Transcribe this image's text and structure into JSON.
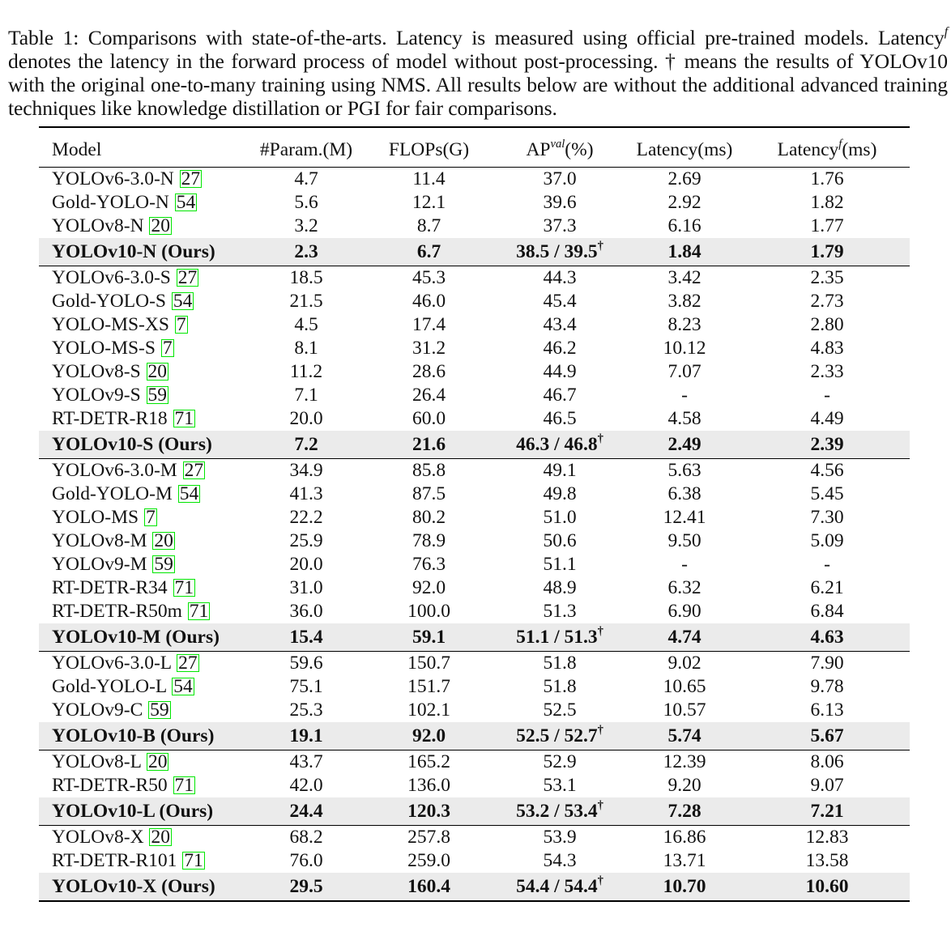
{
  "caption": {
    "lead": "Table 1: Comparisons with state-of-the-arts. Latency is measured using official pre-trained models. Latency",
    "lead_sup": "f",
    "rest": " denotes the latency in the forward process of model without post-processing. † means the results of YOLOv10 with the original one-to-many training using NMS. All results below are without the additional advanced training techniques like knowledge distillation or PGI for fair comparisons."
  },
  "headers": [
    {
      "text": "Model",
      "sup": ""
    },
    {
      "text": "#Param.(M)",
      "sup": ""
    },
    {
      "text": "FLOPs(G)",
      "sup": ""
    },
    {
      "text": "AP",
      "sup": "val",
      "after": "(%)"
    },
    {
      "text": "Latency(ms)",
      "sup": ""
    },
    {
      "text": "Latency",
      "sup": "f",
      "after": "(ms)"
    }
  ],
  "dagger": "†",
  "groups": [
    {
      "rows": [
        {
          "model": "YOLOv6-3.0-N",
          "ref": "27",
          "params": "4.7",
          "flops": "11.4",
          "ap": "37.0",
          "latency": "2.69",
          "latency_f": "1.76"
        },
        {
          "model": "Gold-YOLO-N",
          "ref": "54",
          "params": "5.6",
          "flops": "12.1",
          "ap": "39.6",
          "latency": "2.92",
          "latency_f": "1.82"
        },
        {
          "model": "YOLOv8-N",
          "ref": "20",
          "params": "3.2",
          "flops": "8.7",
          "ap": "37.3",
          "latency": "6.16",
          "latency_f": "1.77"
        }
      ],
      "ours": {
        "model": "YOLOv10-N (Ours)",
        "params": "2.3",
        "flops": "6.7",
        "ap": "38.5 / 39.5",
        "latency": "1.84",
        "latency_f": "1.79"
      }
    },
    {
      "rows": [
        {
          "model": "YOLOv6-3.0-S",
          "ref": "27",
          "params": "18.5",
          "flops": "45.3",
          "ap": "44.3",
          "latency": "3.42",
          "latency_f": "2.35"
        },
        {
          "model": "Gold-YOLO-S",
          "ref": "54",
          "params": "21.5",
          "flops": "46.0",
          "ap": "45.4",
          "latency": "3.82",
          "latency_f": "2.73"
        },
        {
          "model": "YOLO-MS-XS",
          "ref": "7",
          "params": "4.5",
          "flops": "17.4",
          "ap": "43.4",
          "latency": "8.23",
          "latency_f": "2.80"
        },
        {
          "model": "YOLO-MS-S",
          "ref": "7",
          "params": "8.1",
          "flops": "31.2",
          "ap": "46.2",
          "latency": "10.12",
          "latency_f": "4.83"
        },
        {
          "model": "YOLOv8-S",
          "ref": "20",
          "params": "11.2",
          "flops": "28.6",
          "ap": "44.9",
          "latency": "7.07",
          "latency_f": "2.33"
        },
        {
          "model": "YOLOv9-S",
          "ref": "59",
          "params": "7.1",
          "flops": "26.4",
          "ap": "46.7",
          "latency": "-",
          "latency_f": "-"
        },
        {
          "model": "RT-DETR-R18",
          "ref": "71",
          "params": "20.0",
          "flops": "60.0",
          "ap": "46.5",
          "latency": "4.58",
          "latency_f": "4.49"
        }
      ],
      "ours": {
        "model": "YOLOv10-S (Ours)",
        "params": "7.2",
        "flops": "21.6",
        "ap": "46.3 / 46.8",
        "latency": "2.49",
        "latency_f": "2.39"
      }
    },
    {
      "rows": [
        {
          "model": "YOLOv6-3.0-M",
          "ref": "27",
          "params": "34.9",
          "flops": "85.8",
          "ap": "49.1",
          "latency": "5.63",
          "latency_f": "4.56"
        },
        {
          "model": "Gold-YOLO-M",
          "ref": "54",
          "params": "41.3",
          "flops": "87.5",
          "ap": "49.8",
          "latency": "6.38",
          "latency_f": "5.45"
        },
        {
          "model": "YOLO-MS",
          "ref": "7",
          "params": "22.2",
          "flops": "80.2",
          "ap": "51.0",
          "latency": "12.41",
          "latency_f": "7.30"
        },
        {
          "model": "YOLOv8-M",
          "ref": "20",
          "params": "25.9",
          "flops": "78.9",
          "ap": "50.6",
          "latency": "9.50",
          "latency_f": "5.09"
        },
        {
          "model": "YOLOv9-M",
          "ref": "59",
          "params": "20.0",
          "flops": "76.3",
          "ap": "51.1",
          "latency": "-",
          "latency_f": "-"
        },
        {
          "model": "RT-DETR-R34",
          "ref": "71",
          "params": "31.0",
          "flops": "92.0",
          "ap": "48.9",
          "latency": "6.32",
          "latency_f": "6.21"
        },
        {
          "model": "RT-DETR-R50m",
          "ref": "71",
          "params": "36.0",
          "flops": "100.0",
          "ap": "51.3",
          "latency": "6.90",
          "latency_f": "6.84"
        }
      ],
      "ours": {
        "model": "YOLOv10-M (Ours)",
        "params": "15.4",
        "flops": "59.1",
        "ap": "51.1 / 51.3",
        "latency": "4.74",
        "latency_f": "4.63"
      }
    },
    {
      "rows": [
        {
          "model": "YOLOv6-3.0-L",
          "ref": "27",
          "params": "59.6",
          "flops": "150.7",
          "ap": "51.8",
          "latency": "9.02",
          "latency_f": "7.90"
        },
        {
          "model": "Gold-YOLO-L",
          "ref": "54",
          "params": "75.1",
          "flops": "151.7",
          "ap": "51.8",
          "latency": "10.65",
          "latency_f": "9.78"
        },
        {
          "model": "YOLOv9-C",
          "ref": "59",
          "params": "25.3",
          "flops": "102.1",
          "ap": "52.5",
          "latency": "10.57",
          "latency_f": "6.13"
        }
      ],
      "ours": {
        "model": "YOLOv10-B (Ours)",
        "params": "19.1",
        "flops": "92.0",
        "ap": "52.5 / 52.7",
        "latency": "5.74",
        "latency_f": "5.67"
      }
    },
    {
      "rows": [
        {
          "model": "YOLOv8-L",
          "ref": "20",
          "params": "43.7",
          "flops": "165.2",
          "ap": "52.9",
          "latency": "12.39",
          "latency_f": "8.06"
        },
        {
          "model": "RT-DETR-R50",
          "ref": "71",
          "params": "42.0",
          "flops": "136.0",
          "ap": "53.1",
          "latency": "9.20",
          "latency_f": "9.07"
        }
      ],
      "ours": {
        "model": "YOLOv10-L (Ours)",
        "params": "24.4",
        "flops": "120.3",
        "ap": "53.2 / 53.4",
        "latency": "7.28",
        "latency_f": "7.21"
      }
    },
    {
      "rows": [
        {
          "model": "YOLOv8-X",
          "ref": "20",
          "params": "68.2",
          "flops": "257.8",
          "ap": "53.9",
          "latency": "16.86",
          "latency_f": "12.83"
        },
        {
          "model": "RT-DETR-R101",
          "ref": "71",
          "params": "76.0",
          "flops": "259.0",
          "ap": "54.3",
          "latency": "13.71",
          "latency_f": "13.58"
        }
      ],
      "ours": {
        "model": "YOLOv10-X (Ours)",
        "params": "29.5",
        "flops": "160.4",
        "ap": "54.4 / 54.4",
        "latency": "10.70",
        "latency_f": "10.60"
      }
    }
  ]
}
